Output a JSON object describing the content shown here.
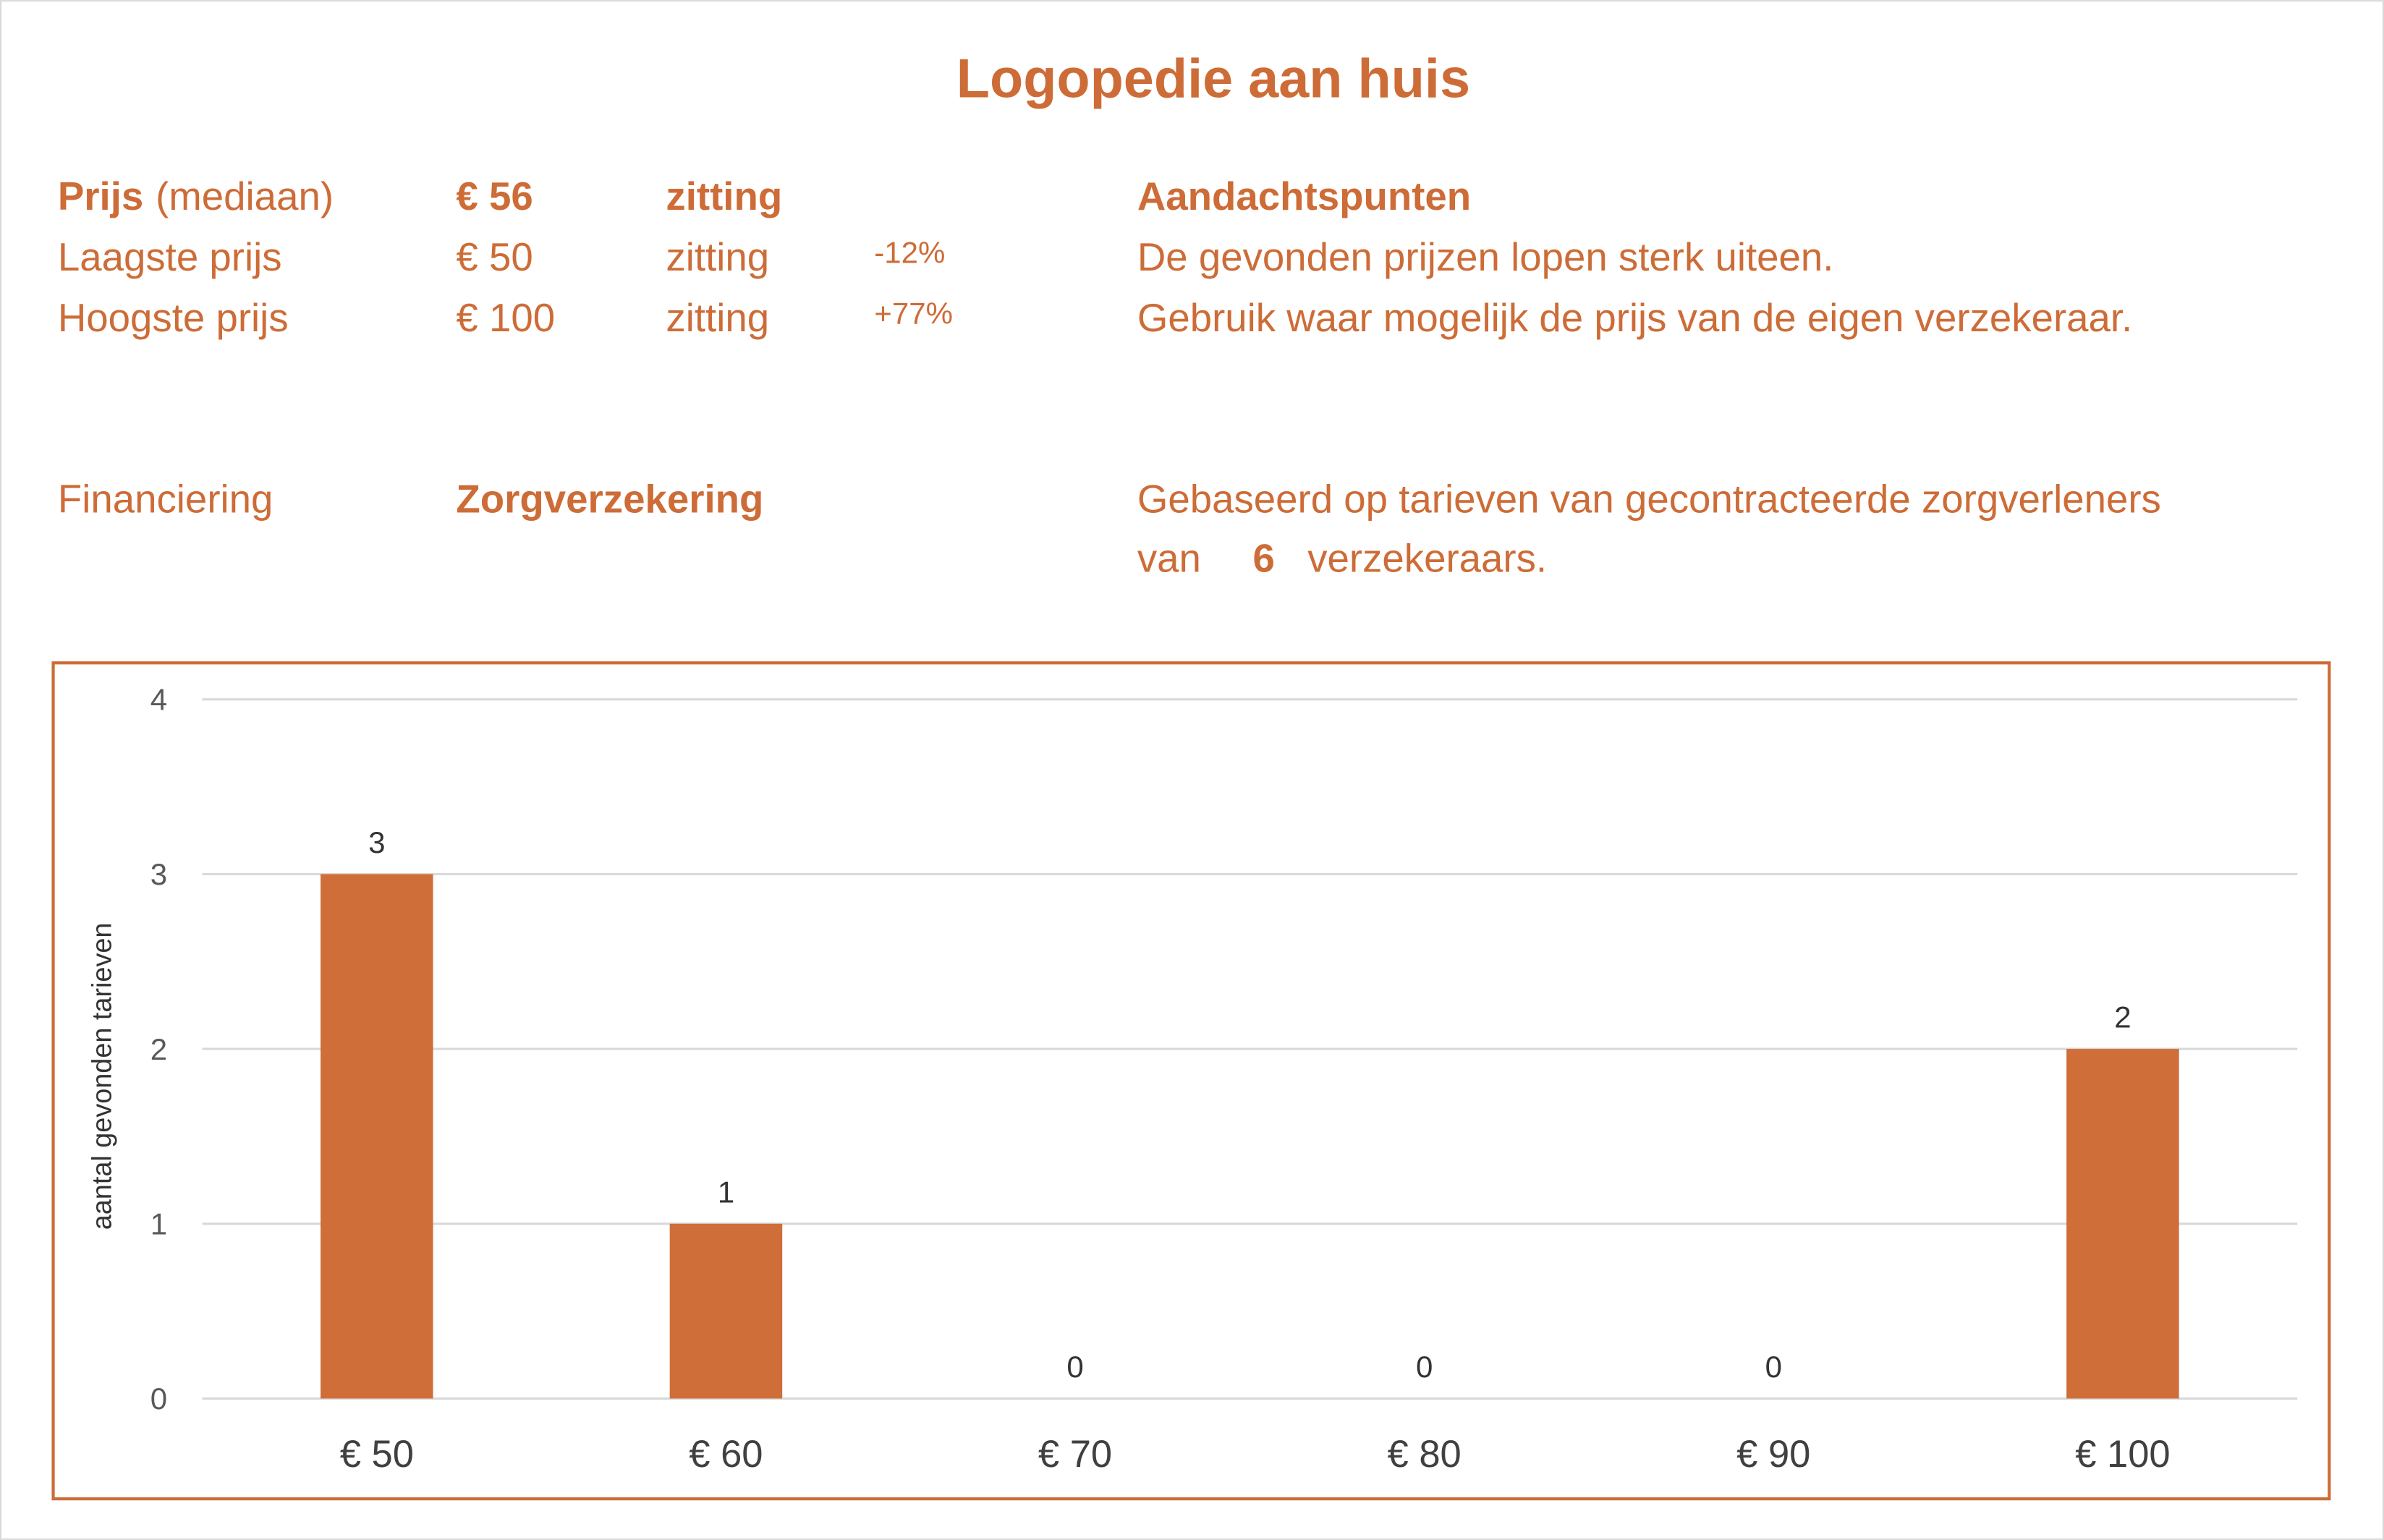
{
  "header": {
    "title": "Logopedie aan huis"
  },
  "prices": {
    "rows": [
      {
        "label": "Prijs",
        "qualifier": "(mediaan)",
        "price": "€ 56",
        "unit": "zitting"
      },
      {
        "label": "Laagste prijs",
        "price": "€ 50",
        "unit": "zitting",
        "change": "-12%"
      },
      {
        "label": "Hoogste prijs",
        "price": "€ 100",
        "unit": "zitting",
        "change": "+77%"
      }
    ]
  },
  "notes": {
    "heading": "Aandachtspunten",
    "lines": [
      "De gevonden prijzen lopen sterk uiteen.",
      "Gebruik waar mogelijk de prijs van de eigen verzekeraar."
    ]
  },
  "financing": {
    "label": "Financiering",
    "value": "Zorgverzekering"
  },
  "source": {
    "line1": "Gebaseerd op tarieven van gecontracteerde zorgverleners",
    "prefix": "van",
    "count": "6",
    "suffix": "verzekeraars."
  },
  "chart_data": {
    "type": "bar",
    "y_label": "aantal gevonden tarieven",
    "categories": [
      "€ 50",
      "€ 60",
      "€ 70",
      "€ 80",
      "€ 90",
      "€ 100"
    ],
    "values": [
      3,
      1,
      0,
      0,
      0,
      2
    ],
    "color": "#cf6e38",
    "ylim": [
      0,
      4
    ],
    "yticks": [
      0,
      1,
      2,
      3,
      4
    ],
    "grid": true
  }
}
